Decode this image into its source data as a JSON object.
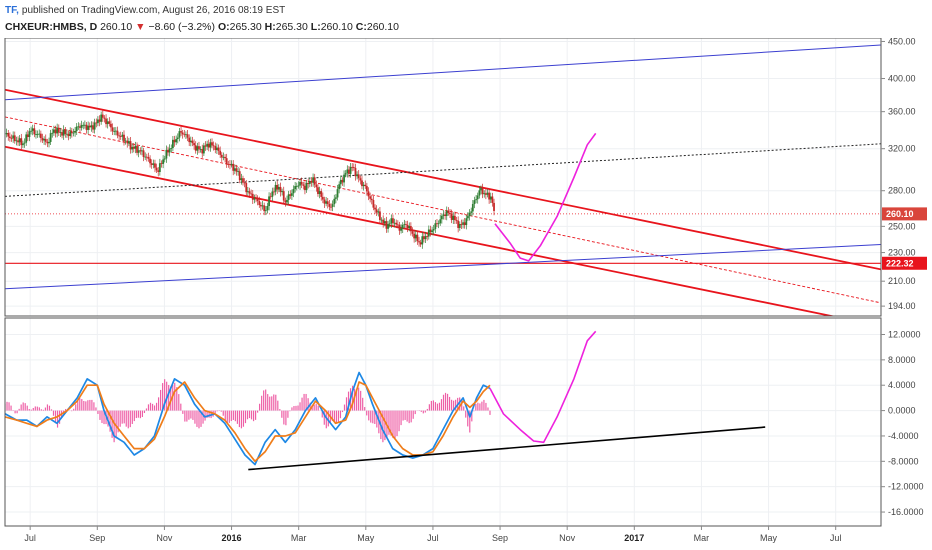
{
  "header": {
    "logo": "TF,",
    "published": "published on TradingView.com, August 26, 2016 08:19 EST",
    "symbol": "CHXEUR:HMBS, D",
    "last": "260.10",
    "change": "−8.60 (−3.2%)",
    "o_label": "O:",
    "o": "265.30",
    "h_label": "H:",
    "h": "265.30",
    "l_label": "L:",
    "l": "260.10",
    "c_label": "C:",
    "c": "260.10"
  },
  "colors": {
    "down": "#d32f2f",
    "channel": "#e8141c",
    "blue_line": "#3b3fd0",
    "projection": "#ee22dd",
    "macd": "#1e88e5",
    "signal": "#ef7d1a",
    "hist": "#ee5fa6",
    "candle_up": "#2e7d32",
    "candle_down": "#c62828"
  },
  "chart_data": [
    {
      "type": "candlestick",
      "panel": "price",
      "y_ticks": [
        "450.00",
        "400.00",
        "360.00",
        "320.00",
        "280.00",
        "250.00",
        "230.00",
        "210.00",
        "194.00"
      ],
      "y_tick_values": [
        450,
        400,
        360,
        320,
        280,
        250,
        230,
        210,
        194
      ],
      "scale": "log",
      "ylim": [
        188,
        455
      ],
      "x_ticks": [
        "Jul",
        "Sep",
        "Nov",
        "2016",
        "Mar",
        "May",
        "Jul",
        "Sep",
        "Nov",
        "2017",
        "Mar",
        "May",
        "Jul"
      ],
      "x_tick_bold": [
        "2016",
        "2017"
      ],
      "x_tick_months": [
        0,
        2,
        4,
        6,
        8,
        10,
        12,
        14,
        16,
        18,
        20,
        22,
        24
      ],
      "xlim_months": [
        -0.75,
        25.35
      ],
      "price_labels": [
        {
          "text": "260.10",
          "value": 260.1,
          "color": "#d9453b"
        },
        {
          "text": "222.32",
          "value": 222.32,
          "color": "#e8141c"
        }
      ],
      "close_path": [
        [
          -0.75,
          335
        ],
        [
          -0.2,
          325
        ],
        [
          0.0,
          340
        ],
        [
          0.3,
          333
        ],
        [
          0.5,
          325
        ],
        [
          0.7,
          340
        ],
        [
          0.9,
          337
        ],
        [
          1.2,
          335
        ],
        [
          1.5,
          345
        ],
        [
          1.8,
          342
        ],
        [
          2.0,
          348
        ],
        [
          2.1,
          355
        ],
        [
          2.3,
          348
        ],
        [
          2.5,
          338
        ],
        [
          2.8,
          330
        ],
        [
          3.0,
          322
        ],
        [
          3.3,
          317
        ],
        [
          3.6,
          306
        ],
        [
          3.8,
          298
        ],
        [
          4.0,
          312
        ],
        [
          4.3,
          328
        ],
        [
          4.5,
          338
        ],
        [
          4.7,
          331
        ],
        [
          4.9,
          322
        ],
        [
          5.1,
          318
        ],
        [
          5.3,
          325
        ],
        [
          5.5,
          322
        ],
        [
          5.7,
          313
        ],
        [
          5.9,
          305
        ],
        [
          6.1,
          300
        ],
        [
          6.3,
          290
        ],
        [
          6.5,
          278
        ],
        [
          6.8,
          270
        ],
        [
          7.0,
          262
        ],
        [
          7.2,
          279
        ],
        [
          7.4,
          284
        ],
        [
          7.6,
          270
        ],
        [
          7.8,
          279
        ],
        [
          8.0,
          287
        ],
        [
          8.2,
          283
        ],
        [
          8.4,
          291
        ],
        [
          8.6,
          278
        ],
        [
          8.8,
          269
        ],
        [
          9.0,
          266
        ],
        [
          9.2,
          285
        ],
        [
          9.4,
          296
        ],
        [
          9.6,
          302
        ],
        [
          9.8,
          290
        ],
        [
          10.0,
          282
        ],
        [
          10.2,
          268
        ],
        [
          10.4,
          258
        ],
        [
          10.6,
          250
        ],
        [
          10.8,
          255
        ],
        [
          11.0,
          248
        ],
        [
          11.2,
          252
        ],
        [
          11.4,
          244
        ],
        [
          11.6,
          237
        ],
        [
          11.8,
          243
        ],
        [
          12.0,
          248
        ],
        [
          12.2,
          255
        ],
        [
          12.4,
          262
        ],
        [
          12.6,
          257
        ],
        [
          12.8,
          250
        ],
        [
          13.0,
          255
        ],
        [
          13.2,
          268
        ],
        [
          13.4,
          281
        ],
        [
          13.6,
          276
        ],
        [
          13.75,
          274
        ],
        [
          13.82,
          260
        ]
      ],
      "lines": [
        {
          "name": "channel-upper",
          "color": "#e8141c",
          "width": 1.8,
          "dash": "",
          "points": [
            [
              -0.75,
              386
            ],
            [
              25.35,
              218
            ]
          ]
        },
        {
          "name": "channel-lower",
          "color": "#e8141c",
          "width": 1.8,
          "dash": "",
          "points": [
            [
              -0.75,
              322
            ],
            [
              25.35,
              182
            ]
          ]
        },
        {
          "name": "channel-middle",
          "color": "#e8141c",
          "width": 0.9,
          "dash": "3,2",
          "points": [
            [
              -0.75,
              354
            ],
            [
              25.35,
              196
            ]
          ]
        },
        {
          "name": "support-222",
          "color": "#e8141c",
          "width": 1.2,
          "dash": "",
          "points": [
            [
              -0.75,
              222.32
            ],
            [
              25.35,
              222.32
            ]
          ]
        },
        {
          "name": "last-price",
          "color": "#e8141c",
          "width": 0.8,
          "dash": "1,2",
          "points": [
            [
              -0.75,
              260.1
            ],
            [
              25.35,
              260.1
            ]
          ]
        },
        {
          "name": "blue-upper",
          "color": "#3b3fd0",
          "width": 1,
          "dash": "",
          "points": [
            [
              -0.75,
              374
            ],
            [
              25.35,
              445
            ]
          ]
        },
        {
          "name": "blue-lower",
          "color": "#3b3fd0",
          "width": 1,
          "dash": "",
          "points": [
            [
              -0.75,
              205
            ],
            [
              25.35,
              236
            ]
          ]
        },
        {
          "name": "black-dotted",
          "color": "#222222",
          "width": 1,
          "dash": "2,2",
          "points": [
            [
              -0.75,
              275
            ],
            [
              25.35,
              325
            ]
          ]
        },
        {
          "name": "projection",
          "color": "#ee22dd",
          "width": 1.6,
          "dash": "",
          "points": [
            [
              13.85,
              252
            ],
            [
              14.3,
              237
            ],
            [
              14.6,
              226
            ],
            [
              14.85,
              224
            ],
            [
              15.2,
              235
            ],
            [
              15.7,
              258
            ],
            [
              16.2,
              292
            ],
            [
              16.6,
              324
            ],
            [
              16.85,
              336
            ]
          ]
        }
      ]
    },
    {
      "type": "line",
      "panel": "macd",
      "y_ticks": [
        "12.0000",
        "8.0000",
        "4.0000",
        "0.0000",
        "-4.0000",
        "-8.0000",
        "-12.0000",
        "-16.0000"
      ],
      "y_tick_values": [
        12,
        8,
        4,
        0,
        -4,
        -8,
        -12,
        -16
      ],
      "ylim": [
        -18.2,
        14.6
      ],
      "series": [
        {
          "name": "macd",
          "color": "#1e88e5",
          "points": [
            [
              -0.75,
              -0.5
            ],
            [
              -0.4,
              -1.5
            ],
            [
              -0.1,
              -1.5
            ],
            [
              0.2,
              -2.5
            ],
            [
              0.5,
              -1
            ],
            [
              0.8,
              -2
            ],
            [
              1.1,
              0
            ],
            [
              1.4,
              2
            ],
            [
              1.7,
              5
            ],
            [
              2.0,
              4
            ],
            [
              2.2,
              0
            ],
            [
              2.5,
              -4
            ],
            [
              2.8,
              -5
            ],
            [
              3.1,
              -7
            ],
            [
              3.4,
              -6
            ],
            [
              3.7,
              -4
            ],
            [
              4.0,
              1
            ],
            [
              4.3,
              5
            ],
            [
              4.6,
              4
            ],
            [
              4.9,
              1
            ],
            [
              5.2,
              -1
            ],
            [
              5.5,
              -0.5
            ],
            [
              5.8,
              -2
            ],
            [
              6.1,
              -4.5
            ],
            [
              6.4,
              -7
            ],
            [
              6.7,
              -8.5
            ],
            [
              7.0,
              -5
            ],
            [
              7.3,
              -3
            ],
            [
              7.6,
              -5
            ],
            [
              7.9,
              -3
            ],
            [
              8.2,
              0
            ],
            [
              8.5,
              2
            ],
            [
              8.8,
              -1
            ],
            [
              9.1,
              -3
            ],
            [
              9.4,
              -1
            ],
            [
              9.6,
              3
            ],
            [
              9.8,
              6
            ],
            [
              10.0,
              4
            ],
            [
              10.2,
              1
            ],
            [
              10.5,
              -3
            ],
            [
              10.8,
              -6
            ],
            [
              11.1,
              -7
            ],
            [
              11.4,
              -7.5
            ],
            [
              11.7,
              -7
            ],
            [
              12.0,
              -6
            ],
            [
              12.3,
              -3
            ],
            [
              12.6,
              0
            ],
            [
              12.9,
              2
            ],
            [
              13.1,
              -1
            ],
            [
              13.3,
              2
            ],
            [
              13.5,
              4
            ],
            [
              13.7,
              3.5
            ]
          ]
        },
        {
          "name": "signal",
          "color": "#ef7d1a",
          "points": [
            [
              -0.75,
              -1
            ],
            [
              -0.4,
              -1.5
            ],
            [
              -0.1,
              -2
            ],
            [
              0.2,
              -2.5
            ],
            [
              0.5,
              -1.5
            ],
            [
              0.8,
              -1
            ],
            [
              1.1,
              0
            ],
            [
              1.4,
              1.5
            ],
            [
              1.7,
              4
            ],
            [
              2.0,
              4
            ],
            [
              2.2,
              1
            ],
            [
              2.5,
              -2
            ],
            [
              2.8,
              -4
            ],
            [
              3.1,
              -6
            ],
            [
              3.4,
              -6
            ],
            [
              3.7,
              -4.5
            ],
            [
              4.0,
              -1
            ],
            [
              4.3,
              3
            ],
            [
              4.6,
              4.5
            ],
            [
              4.9,
              2
            ],
            [
              5.2,
              0
            ],
            [
              5.5,
              -0.5
            ],
            [
              5.8,
              -1.5
            ],
            [
              6.1,
              -3.5
            ],
            [
              6.4,
              -6
            ],
            [
              6.7,
              -8
            ],
            [
              7.0,
              -6.5
            ],
            [
              7.3,
              -4
            ],
            [
              7.6,
              -4
            ],
            [
              7.9,
              -3.5
            ],
            [
              8.2,
              -1
            ],
            [
              8.5,
              1.5
            ],
            [
              8.8,
              0
            ],
            [
              9.1,
              -2
            ],
            [
              9.4,
              -1.5
            ],
            [
              9.6,
              1
            ],
            [
              9.8,
              4.5
            ],
            [
              10.0,
              4
            ],
            [
              10.2,
              2
            ],
            [
              10.5,
              -1
            ],
            [
              10.8,
              -4
            ],
            [
              11.1,
              -6
            ],
            [
              11.4,
              -7
            ],
            [
              11.7,
              -7
            ],
            [
              12.0,
              -6.5
            ],
            [
              12.3,
              -4
            ],
            [
              12.6,
              -1
            ],
            [
              12.9,
              1.5
            ],
            [
              13.1,
              0.5
            ],
            [
              13.3,
              1.5
            ],
            [
              13.5,
              3
            ],
            [
              13.7,
              4
            ]
          ]
        }
      ],
      "lines": [
        {
          "name": "macd-trendline",
          "color": "#000000",
          "width": 1.6,
          "dash": "",
          "points": [
            [
              6.5,
              -9.3
            ],
            [
              21.9,
              -2.6
            ]
          ]
        },
        {
          "name": "macd-projection",
          "color": "#ee22dd",
          "width": 1.6,
          "dash": "",
          "points": [
            [
              13.7,
              3.5
            ],
            [
              14.1,
              -0.5
            ],
            [
              14.6,
              -3
            ],
            [
              15.0,
              -4.8
            ],
            [
              15.3,
              -5
            ],
            [
              15.7,
              -1
            ],
            [
              16.2,
              5
            ],
            [
              16.6,
              11
            ],
            [
              16.85,
              12.5
            ]
          ]
        }
      ]
    }
  ]
}
